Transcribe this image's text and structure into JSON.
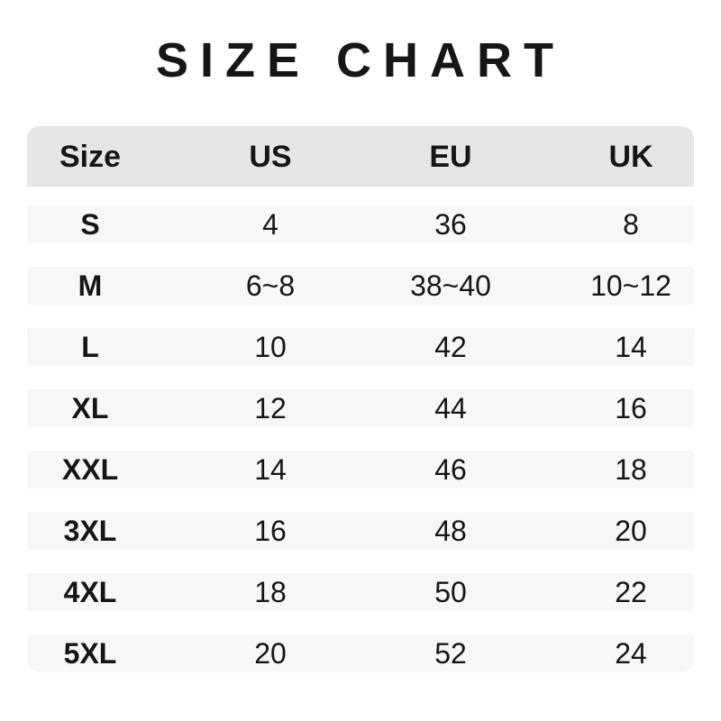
{
  "title": "SIZE CHART",
  "table": {
    "columns": [
      "Size",
      "US",
      "EU",
      "UK"
    ],
    "rows": [
      {
        "size": "S",
        "us": "4",
        "eu": "36",
        "uk": "8"
      },
      {
        "size": "M",
        "us": "6~8",
        "eu": "38~40",
        "uk": "10~12"
      },
      {
        "size": "L",
        "us": "10",
        "eu": "42",
        "uk": "14"
      },
      {
        "size": "XL",
        "us": "12",
        "eu": "44",
        "uk": "16"
      },
      {
        "size": "XXL",
        "us": "14",
        "eu": "46",
        "uk": "18"
      },
      {
        "size": "3XL",
        "us": "16",
        "eu": "48",
        "uk": "20"
      },
      {
        "size": "4XL",
        "us": "18",
        "eu": "50",
        "uk": "22"
      },
      {
        "size": "5XL",
        "us": "20",
        "eu": "52",
        "uk": "24"
      }
    ]
  },
  "colors": {
    "background": "#ffffff",
    "header_bg": "#e6e6e6",
    "row_bg": "#f7f7f7",
    "text": "#161616"
  },
  "chart_data": {
    "type": "table",
    "title": "SIZE CHART",
    "columns": [
      "Size",
      "US",
      "EU",
      "UK"
    ],
    "rows": [
      [
        "S",
        "4",
        "36",
        "8"
      ],
      [
        "M",
        "6~8",
        "38~40",
        "10~12"
      ],
      [
        "L",
        "10",
        "42",
        "14"
      ],
      [
        "XL",
        "12",
        "44",
        "16"
      ],
      [
        "XXL",
        "14",
        "46",
        "18"
      ],
      [
        "3XL",
        "16",
        "48",
        "20"
      ],
      [
        "4XL",
        "18",
        "50",
        "22"
      ],
      [
        "5XL",
        "20",
        "52",
        "24"
      ]
    ],
    "layout_hints": {
      "header_background": "#e6e6e6",
      "row_background": "#f7f7f7",
      "row_separator": "white gaps",
      "alignment": "center"
    }
  }
}
